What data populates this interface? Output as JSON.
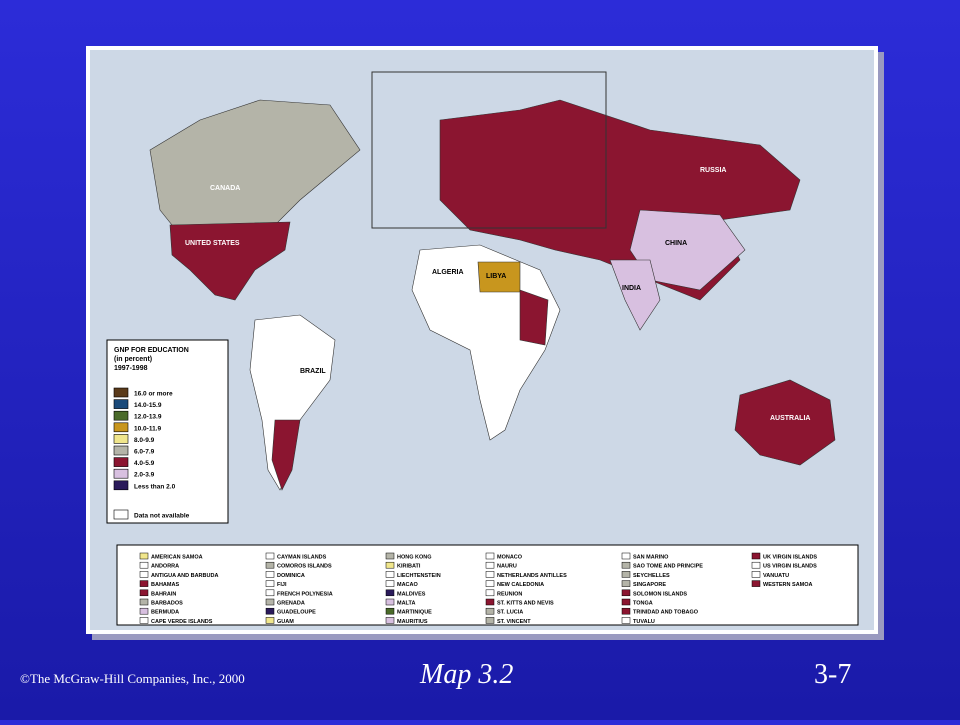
{
  "legend": {
    "title": "GNP FOR EDUCATION",
    "subtitle": "(in percent)",
    "years": "1997-1998",
    "items": [
      {
        "label": "16.0 or more",
        "color": "#5a3a1a"
      },
      {
        "label": "14.0-15.9",
        "color": "#1a4a7a"
      },
      {
        "label": "12.0-13.9",
        "color": "#4a6a2a"
      },
      {
        "label": "10.0-11.9",
        "color": "#c8961e"
      },
      {
        "label": "8.0-9.9",
        "color": "#f0e68c"
      },
      {
        "label": "6.0-7.9",
        "color": "#b4b4a8"
      },
      {
        "label": "4.0-5.9",
        "color": "#8b1530"
      },
      {
        "label": "2.0-3.9",
        "color": "#d8c0e0"
      },
      {
        "label": "Less than 2.0",
        "color": "#2a1a5a"
      },
      {
        "label": "Data not available",
        "color": "#ffffff"
      }
    ]
  },
  "map_labels": [
    "CANADA",
    "UNITED STATES",
    "BRAZIL",
    "RUSSIA",
    "CHINA",
    "INDIA",
    "ALGERIA",
    "LIBYA",
    "AUSTRALIA"
  ],
  "territories": [
    [
      {
        "name": "AMERICAN SAMOA",
        "color": "#f0e68c"
      },
      {
        "name": "ANDORRA",
        "color": "#ffffff"
      },
      {
        "name": "ANTIGUA AND BARBUDA",
        "color": "#ffffff"
      },
      {
        "name": "BAHAMAS",
        "color": "#8b1530"
      },
      {
        "name": "BAHRAIN",
        "color": "#8b1530"
      },
      {
        "name": "BARBADOS",
        "color": "#b4b4a8"
      },
      {
        "name": "BERMUDA",
        "color": "#d8c0e0"
      },
      {
        "name": "CAPE VERDE ISLANDS",
        "color": "#ffffff"
      }
    ],
    [
      {
        "name": "CAYMAN ISLANDS",
        "color": "#ffffff"
      },
      {
        "name": "COMOROS ISLANDS",
        "color": "#b4b4a8"
      },
      {
        "name": "DOMINICA",
        "color": "#ffffff"
      },
      {
        "name": "FIJI",
        "color": "#ffffff"
      },
      {
        "name": "FRENCH POLYNESIA",
        "color": "#ffffff"
      },
      {
        "name": "GRENADA",
        "color": "#b4b4a8"
      },
      {
        "name": "GUADELOUPE",
        "color": "#2a1a5a"
      },
      {
        "name": "GUAM",
        "color": "#f0e68c"
      }
    ],
    [
      {
        "name": "HONG KONG",
        "color": "#b4b4a8"
      },
      {
        "name": "KIRIBATI",
        "color": "#f0e68c"
      },
      {
        "name": "LIECHTENSTEIN",
        "color": "#ffffff"
      },
      {
        "name": "MACAO",
        "color": "#ffffff"
      },
      {
        "name": "MALDIVES",
        "color": "#2a1a5a"
      },
      {
        "name": "MALTA",
        "color": "#d8c0e0"
      },
      {
        "name": "MARTINIQUE",
        "color": "#4a6a2a"
      },
      {
        "name": "MAURITIUS",
        "color": "#d8c0e0"
      }
    ],
    [
      {
        "name": "MONACO",
        "color": "#ffffff"
      },
      {
        "name": "NAURU",
        "color": "#ffffff"
      },
      {
        "name": "NETHERLANDS ANTILLES",
        "color": "#ffffff"
      },
      {
        "name": "NEW CALEDONIA",
        "color": "#ffffff"
      },
      {
        "name": "REUNION",
        "color": "#ffffff"
      },
      {
        "name": "ST. KITTS AND NEVIS",
        "color": "#8b1530"
      },
      {
        "name": "ST. LUCIA",
        "color": "#b4b4a8"
      },
      {
        "name": "ST. VINCENT",
        "color": "#b4b4a8"
      }
    ],
    [
      {
        "name": "SAN MARINO",
        "color": "#ffffff"
      },
      {
        "name": "SAO TOME AND PRINCIPE",
        "color": "#b4b4a8"
      },
      {
        "name": "SEYCHELLES",
        "color": "#b4b4a8"
      },
      {
        "name": "SINGAPORE",
        "color": "#b4b4a8"
      },
      {
        "name": "SOLOMON ISLANDS",
        "color": "#8b1530"
      },
      {
        "name": "TONGA",
        "color": "#8b1530"
      },
      {
        "name": "TRINIDAD AND TOBAGO",
        "color": "#8b1530"
      },
      {
        "name": "TUVALU",
        "color": "#ffffff"
      }
    ],
    [
      {
        "name": "UK VIRGIN ISLANDS",
        "color": "#8b1530"
      },
      {
        "name": "US VIRGIN ISLANDS",
        "color": "#ffffff"
      },
      {
        "name": "VANUATU",
        "color": "#ffffff"
      },
      {
        "name": "WESTERN SAMOA",
        "color": "#8b1530"
      }
    ]
  ],
  "footer": {
    "copyright": "©The McGraw-Hill Companies, Inc., 2000",
    "caption": "Map 3.2",
    "page": "3-7"
  }
}
